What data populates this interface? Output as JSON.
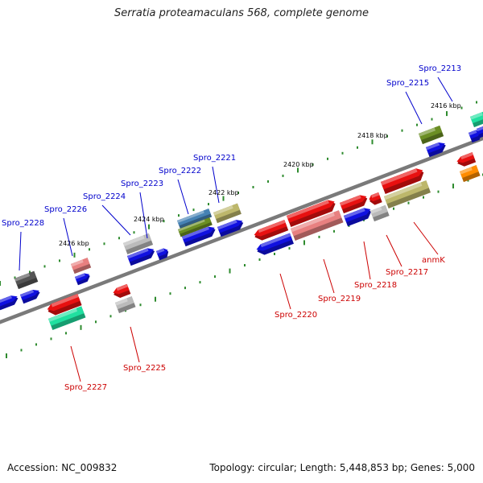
{
  "title": "Serratia proteamaculans 568, complete genome",
  "footer": {
    "accession": "Accession: NC_009832",
    "summary": "Topology: circular; Length: 5,448,853 bp; Genes: 5,000"
  },
  "colors": {
    "backbone": "#7a7a7a",
    "tick": "#2e8b2e",
    "label_top": "#0000cc",
    "label_bottom": "#cc0000",
    "kbp_label": "#000000",
    "blue": "#1010e0",
    "red": "#e81010",
    "pink": "#e88080",
    "gray": "#bbbbbb",
    "darkgray": "#555555",
    "teal": "#20e0a0",
    "olive": "#6b8e23",
    "khaki": "#bdb76b",
    "steel": "#4682b4",
    "orange": "#ff8c00"
  },
  "kbp_labels": [
    "2426 kbp",
    "2424 kbp",
    "2422 kbp",
    "2420 kbp",
    "2418 kbp",
    "2416 kbp"
  ],
  "top_labels": [
    "Spro_2228",
    "Spro_2226",
    "Spro_2224",
    "Spro_2223",
    "Spro_2222",
    "Spro_2221",
    "Spro_2215",
    "Spro_2213"
  ],
  "bottom_labels": [
    "Spro_2227",
    "Spro_2225",
    "Spro_2220",
    "Spro_2219",
    "Spro_2218",
    "Spro_2217",
    "anmK"
  ]
}
